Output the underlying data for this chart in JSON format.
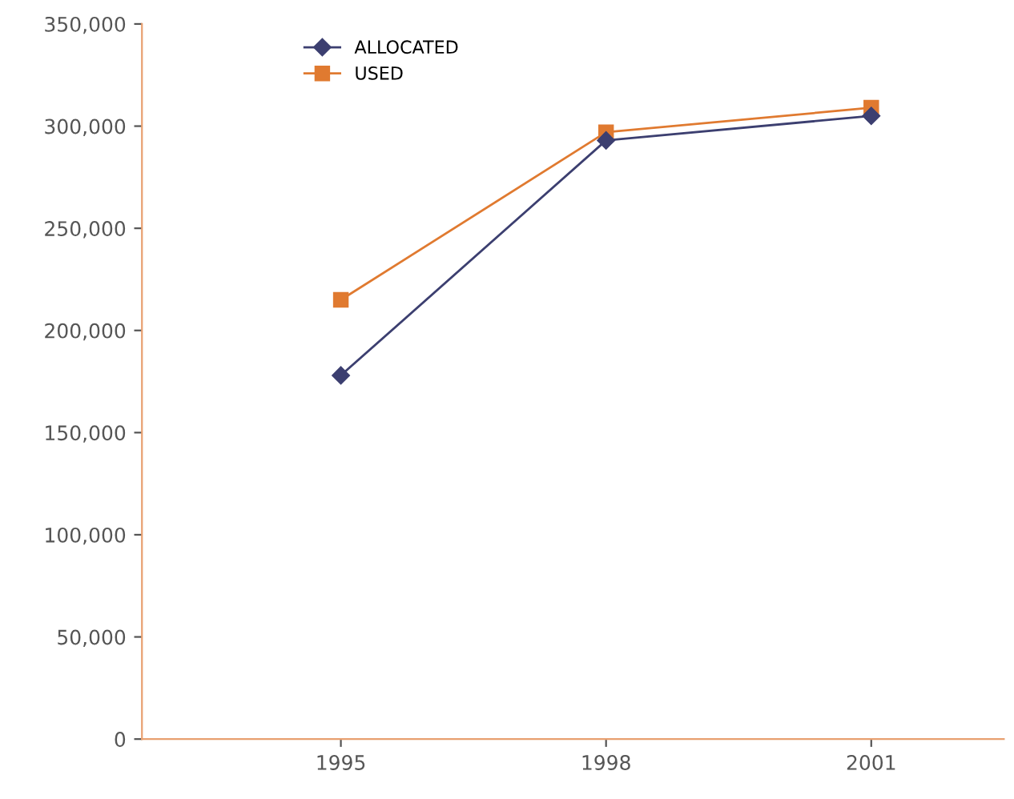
{
  "chart_data": {
    "type": "line",
    "categories": [
      "1995",
      "1998",
      "2001"
    ],
    "series": [
      {
        "name": "ALLOCATED",
        "color": "#3c3f70",
        "marker": "diamond",
        "values": [
          178000,
          293000,
          305000
        ]
      },
      {
        "name": "USED",
        "color": "#e07a30",
        "marker": "square",
        "values": [
          215000,
          297000,
          309000
        ]
      }
    ],
    "ylim": [
      0,
      350000
    ],
    "yticks": [
      {
        "value": 0,
        "label": "0"
      },
      {
        "value": 50000,
        "label": "50,000"
      },
      {
        "value": 100000,
        "label": "100,000"
      },
      {
        "value": 150000,
        "label": "150,000"
      },
      {
        "value": 200000,
        "label": "200,000"
      },
      {
        "value": 250000,
        "label": "250,000"
      },
      {
        "value": 300000,
        "label": "300,000"
      },
      {
        "value": 350000,
        "label": "350,000"
      }
    ],
    "grid": false,
    "legend": "top left",
    "line_style": "solid"
  }
}
